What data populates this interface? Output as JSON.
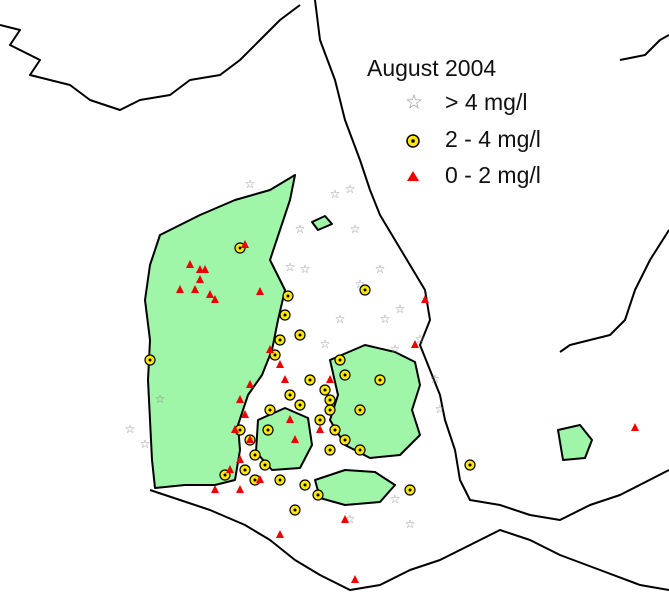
{
  "legend": {
    "title": "August 2004",
    "items": [
      {
        "label": "> 4 mg/l"
      },
      {
        "label": "2 - 4 mg/l"
      },
      {
        "label": "0 - 2 mg/l"
      }
    ]
  }
}
